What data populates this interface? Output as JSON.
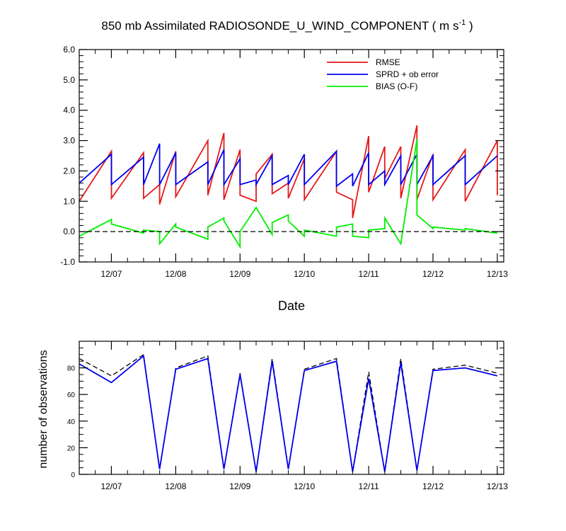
{
  "chart_data": [
    {
      "type": "line",
      "title_main": "850 mb Assimilated RADIOSONDE_U_WIND_COMPONENT ( m s",
      "title_sup": "-1",
      "title_tail": " )",
      "xlabel": "Date",
      "ylabel": "",
      "xlim": [
        0,
        6.6
      ],
      "ylim": [
        -1.0,
        6.0
      ],
      "xticks": [
        {
          "x": 0.5,
          "label": "12/07"
        },
        {
          "x": 1.5,
          "label": "12/08"
        },
        {
          "x": 2.5,
          "label": "12/09"
        },
        {
          "x": 3.5,
          "label": "12/10"
        },
        {
          "x": 4.5,
          "label": "12/11"
        },
        {
          "x": 5.5,
          "label": "12/12"
        },
        {
          "x": 6.5,
          "label": "12/13"
        }
      ],
      "yticks": [
        {
          "v": -1.0,
          "label": "-1.0"
        },
        {
          "v": 0.0,
          "label": "0.0"
        },
        {
          "v": 1.0,
          "label": "1.0"
        },
        {
          "v": 2.0,
          "label": "2.0"
        },
        {
          "v": 3.0,
          "label": "3.0"
        },
        {
          "v": 4.0,
          "label": "4.0"
        },
        {
          "v": 5.0,
          "label": "5.0"
        },
        {
          "v": 6.0,
          "label": "6.0"
        }
      ],
      "legend": [
        {
          "name": "RMSE",
          "color": "#e41a1c"
        },
        {
          "name": "SPRD + ob error",
          "color": "#0000ee"
        },
        {
          "name": "BIAS (O-F)",
          "color": "#00ee00"
        }
      ],
      "series": [
        {
          "name": "RMSE",
          "color": "#e41a1c",
          "points": [
            [
              0.0,
              1.0
            ],
            [
              0.5,
              2.65
            ],
            [
              0.5,
              1.1
            ],
            [
              1.0,
              2.6
            ],
            [
              1.0,
              1.1
            ],
            [
              1.25,
              1.55
            ],
            [
              1.25,
              0.9
            ],
            [
              1.5,
              2.65
            ],
            [
              1.5,
              1.15
            ],
            [
              2.0,
              3.0
            ],
            [
              2.0,
              1.2
            ],
            [
              2.25,
              3.25
            ],
            [
              2.25,
              1.05
            ],
            [
              2.5,
              2.7
            ],
            [
              2.5,
              1.2
            ],
            [
              2.75,
              1.0
            ],
            [
              2.75,
              1.9
            ],
            [
              3.0,
              2.55
            ],
            [
              3.0,
              1.25
            ],
            [
              3.25,
              1.6
            ],
            [
              3.25,
              1.1
            ],
            [
              3.5,
              2.4
            ],
            [
              3.5,
              1.05
            ],
            [
              4.0,
              2.65
            ],
            [
              4.0,
              1.3
            ],
            [
              4.25,
              1.05
            ],
            [
              4.25,
              0.45
            ],
            [
              4.5,
              3.15
            ],
            [
              4.5,
              1.3
            ],
            [
              4.75,
              2.8
            ],
            [
              4.75,
              1.75
            ],
            [
              5.0,
              2.8
            ],
            [
              5.0,
              1.1
            ],
            [
              5.25,
              3.5
            ],
            [
              5.25,
              1.05
            ],
            [
              5.5,
              2.55
            ],
            [
              5.5,
              1.05
            ],
            [
              6.0,
              2.7
            ],
            [
              6.0,
              1.0
            ],
            [
              6.5,
              3.0
            ],
            [
              6.5,
              1.2
            ]
          ]
        },
        {
          "name": "SPRD + ob error",
          "color": "#0000ee",
          "points": [
            [
              0.0,
              1.6
            ],
            [
              0.5,
              2.55
            ],
            [
              0.5,
              1.55
            ],
            [
              1.0,
              2.45
            ],
            [
              1.0,
              1.55
            ],
            [
              1.25,
              2.9
            ],
            [
              1.25,
              1.55
            ],
            [
              1.5,
              2.6
            ],
            [
              1.5,
              1.55
            ],
            [
              2.0,
              2.3
            ],
            [
              2.0,
              1.55
            ],
            [
              2.25,
              2.7
            ],
            [
              2.25,
              1.55
            ],
            [
              2.5,
              2.4
            ],
            [
              2.5,
              1.55
            ],
            [
              2.75,
              1.7
            ],
            [
              2.75,
              1.55
            ],
            [
              3.0,
              2.5
            ],
            [
              3.0,
              1.55
            ],
            [
              3.25,
              1.85
            ],
            [
              3.25,
              1.55
            ],
            [
              3.5,
              2.55
            ],
            [
              3.5,
              1.55
            ],
            [
              4.0,
              2.65
            ],
            [
              4.0,
              1.5
            ],
            [
              4.25,
              1.9
            ],
            [
              4.25,
              1.5
            ],
            [
              4.5,
              2.6
            ],
            [
              4.5,
              1.55
            ],
            [
              4.75,
              2.0
            ],
            [
              4.75,
              1.55
            ],
            [
              5.0,
              2.5
            ],
            [
              5.0,
              1.55
            ],
            [
              5.25,
              2.55
            ],
            [
              5.25,
              1.55
            ],
            [
              5.5,
              2.5
            ],
            [
              5.5,
              1.55
            ],
            [
              6.0,
              2.5
            ],
            [
              6.0,
              1.55
            ],
            [
              6.5,
              2.5
            ]
          ]
        },
        {
          "name": "BIAS (O-F)",
          "color": "#00ee00",
          "points": [
            [
              0.0,
              -0.15
            ],
            [
              0.5,
              0.4
            ],
            [
              0.5,
              0.25
            ],
            [
              1.0,
              -0.05
            ],
            [
              1.0,
              0.05
            ],
            [
              1.25,
              0.0
            ],
            [
              1.25,
              -0.4
            ],
            [
              1.5,
              0.25
            ],
            [
              1.5,
              0.15
            ],
            [
              2.0,
              -0.25
            ],
            [
              2.0,
              0.15
            ],
            [
              2.25,
              0.45
            ],
            [
              2.25,
              0.35
            ],
            [
              2.5,
              -0.5
            ],
            [
              2.5,
              0.0
            ],
            [
              2.75,
              0.8
            ],
            [
              3.0,
              -0.1
            ],
            [
              3.0,
              0.3
            ],
            [
              3.25,
              0.55
            ],
            [
              3.25,
              0.35
            ],
            [
              3.5,
              -0.15
            ],
            [
              3.5,
              0.05
            ],
            [
              4.0,
              -0.15
            ],
            [
              4.0,
              0.15
            ],
            [
              4.25,
              0.25
            ],
            [
              4.25,
              -0.15
            ],
            [
              4.5,
              -0.2
            ],
            [
              4.5,
              0.05
            ],
            [
              4.75,
              0.1
            ],
            [
              4.75,
              0.45
            ],
            [
              5.0,
              -0.4
            ],
            [
              5.25,
              3.05
            ],
            [
              5.25,
              0.55
            ],
            [
              5.5,
              0.1
            ],
            [
              5.5,
              0.15
            ],
            [
              6.0,
              0.05
            ],
            [
              6.0,
              0.1
            ],
            [
              6.5,
              -0.05
            ]
          ]
        },
        {
          "name": "zero line",
          "color": "#000000",
          "dashed": true,
          "points": [
            [
              0.0,
              0.0
            ],
            [
              6.6,
              0.0
            ]
          ]
        }
      ]
    },
    {
      "type": "line",
      "title": "",
      "xlabel": "",
      "ylabel": "number of observations",
      "xlim": [
        0,
        6.6
      ],
      "ylim": [
        0,
        100
      ],
      "xticks": [
        {
          "x": 0.5,
          "label": "12/07"
        },
        {
          "x": 1.5,
          "label": "12/08"
        },
        {
          "x": 2.5,
          "label": "12/09"
        },
        {
          "x": 3.5,
          "label": "12/10"
        },
        {
          "x": 4.5,
          "label": "12/11"
        },
        {
          "x": 5.5,
          "label": "12/12"
        },
        {
          "x": 6.5,
          "label": "12/13"
        }
      ],
      "yticks": [
        {
          "v": 0,
          "label": "0"
        },
        {
          "v": 20,
          "label": "20"
        },
        {
          "v": 40,
          "label": "40"
        },
        {
          "v": 60,
          "label": "60"
        },
        {
          "v": 80,
          "label": "80"
        }
      ],
      "series": [
        {
          "name": "possible observations",
          "color": "#000000",
          "dashed": true,
          "points": [
            [
              0.0,
              87
            ],
            [
              0.5,
              74
            ],
            [
              1.0,
              90
            ],
            [
              1.25,
              4
            ],
            [
              1.5,
              80
            ],
            [
              2.0,
              89
            ],
            [
              2.25,
              4
            ],
            [
              2.5,
              76
            ],
            [
              2.75,
              2
            ],
            [
              3.0,
              87
            ],
            [
              3.25,
              4
            ],
            [
              3.5,
              79
            ],
            [
              4.0,
              87
            ],
            [
              4.25,
              2
            ],
            [
              4.5,
              77
            ],
            [
              4.75,
              2
            ],
            [
              5.0,
              87
            ],
            [
              5.25,
              3
            ],
            [
              5.5,
              79
            ],
            [
              6.0,
              82
            ],
            [
              6.5,
              76
            ]
          ]
        },
        {
          "name": "assimilated observations",
          "color": "#0000ee",
          "points": [
            [
              0.0,
              83
            ],
            [
              0.5,
              69
            ],
            [
              1.0,
              89
            ],
            [
              1.25,
              4
            ],
            [
              1.5,
              79
            ],
            [
              2.0,
              87
            ],
            [
              2.25,
              4
            ],
            [
              2.5,
              75
            ],
            [
              2.75,
              2
            ],
            [
              3.0,
              85
            ],
            [
              3.25,
              4
            ],
            [
              3.5,
              78
            ],
            [
              4.0,
              85
            ],
            [
              4.25,
              2
            ],
            [
              4.5,
              72
            ],
            [
              4.75,
              2
            ],
            [
              5.0,
              84
            ],
            [
              5.25,
              3
            ],
            [
              5.5,
              78
            ],
            [
              6.0,
              80
            ],
            [
              6.5,
              74
            ]
          ]
        }
      ]
    }
  ]
}
